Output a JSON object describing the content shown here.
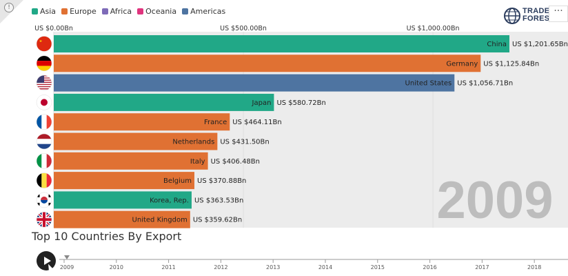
{
  "legend": [
    {
      "label": "Asia",
      "color": "#21a887"
    },
    {
      "label": "Europe",
      "color": "#e07133"
    },
    {
      "label": "Africa",
      "color": "#7e6bb8"
    },
    {
      "label": "Oceania",
      "color": "#e0347e"
    },
    {
      "label": "Americas",
      "color": "#4e74a1"
    }
  ],
  "logo": {
    "line1": "TRADE",
    "line2": "FORESIGHT"
  },
  "more_label": "···",
  "info_label": "!",
  "footer": {
    "title": "Top 10 Countries By Export"
  },
  "chart_data": {
    "type": "bar",
    "orientation": "horizontal",
    "year": "2009",
    "value_prefix": "US $",
    "value_suffix": "Bn",
    "x_ticks": [
      {
        "value": 0,
        "label": "US $0.00Bn"
      },
      {
        "value": 500,
        "label": "US $500.00Bn"
      },
      {
        "value": 1000,
        "label": "US $1,000.00Bn"
      }
    ],
    "xlim": [
      0,
      1201.65
    ],
    "categories": [
      "China",
      "Germany",
      "United States",
      "Japan",
      "France",
      "Netherlands",
      "Italy",
      "Belgium",
      "Korea, Rep.",
      "United Kingdom"
    ],
    "values": [
      1201.65,
      1125.84,
      1056.71,
      580.72,
      464.11,
      431.5,
      406.48,
      370.88,
      363.53,
      359.62
    ],
    "value_labels": [
      "US $1,201.65Bn",
      "US $1,125.84Bn",
      "US $1,056.71Bn",
      "US $580.72Bn",
      "US $464.11Bn",
      "US $431.50Bn",
      "US $406.48Bn",
      "US $370.88Bn",
      "US $363.53Bn",
      "US $359.62Bn"
    ],
    "regions": [
      "Asia",
      "Europe",
      "Americas",
      "Asia",
      "Europe",
      "Europe",
      "Europe",
      "Europe",
      "Asia",
      "Europe"
    ],
    "flags": [
      "china-flag-icon",
      "germany-flag-icon",
      "usa-flag-icon",
      "japan-flag-icon",
      "france-flag-icon",
      "netherlands-flag-icon",
      "italy-flag-icon",
      "belgium-flag-icon",
      "korea-flag-icon",
      "uk-flag-icon"
    ],
    "timeline": {
      "years": [
        "2009",
        "2010",
        "2011",
        "2012",
        "2013",
        "2014",
        "2015",
        "2016",
        "2017",
        "2018"
      ],
      "current": "2009"
    }
  }
}
